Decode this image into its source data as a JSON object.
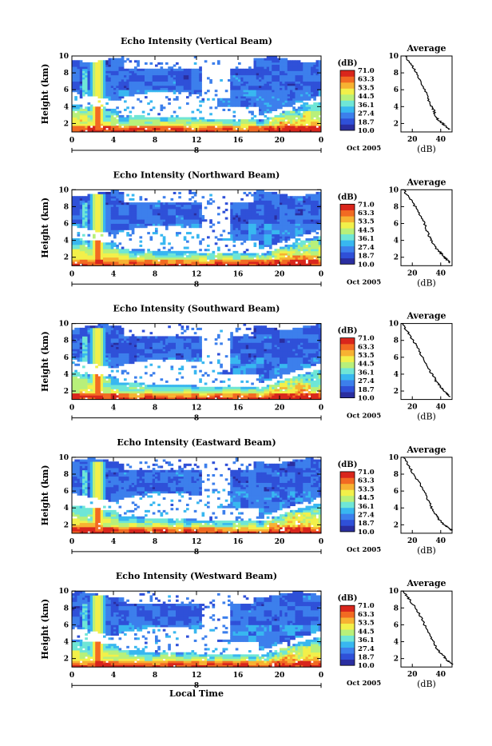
{
  "chart_data": {
    "type": "heatmap",
    "xlabel": "Local Time",
    "date_label": "Oct 2005",
    "date_marker": "8",
    "colorbar_unit": "(dB)",
    "colorbar_ticks": [
      "71.0",
      "63.3",
      "53.5",
      "44.5",
      "36.1",
      "27.4",
      "18.7",
      "10.0"
    ],
    "colorscale": [
      "#2a2ea0",
      "#2f50d8",
      "#3c7fec",
      "#38b7f0",
      "#6fe6d6",
      "#b8f07a",
      "#f2f04a",
      "#f7b232",
      "#f26a22",
      "#d9261c"
    ],
    "x_ticks": [
      "0",
      "4",
      "8",
      "12",
      "16",
      "20",
      "0"
    ],
    "y_ticks": [
      "2",
      "4",
      "6",
      "8",
      "10"
    ],
    "y_label": "Height (km)",
    "xlim": [
      0,
      24
    ],
    "ylim": [
      1,
      10
    ],
    "panels": [
      {
        "title": "Echo Intensity (Vertical Beam)",
        "avg_title": "Average",
        "avg_unit": "(dB)",
        "avg_x_ticks": [
          "20",
          "40"
        ],
        "avg_xlim": [
          12,
          48
        ],
        "avg_profile": [
          [
            46,
            1.3
          ],
          [
            44,
            1.6
          ],
          [
            42,
            1.9
          ],
          [
            40,
            2.2
          ],
          [
            38,
            2.5
          ],
          [
            36,
            3.0
          ],
          [
            35,
            3.6
          ],
          [
            33,
            4.2
          ],
          [
            31,
            5.0
          ],
          [
            29,
            6.0
          ],
          [
            26,
            7.0
          ],
          [
            23,
            8.0
          ],
          [
            20,
            8.8
          ],
          [
            17,
            9.4
          ],
          [
            15,
            10
          ]
        ]
      },
      {
        "title": "Echo Intensity (Northward Beam)",
        "avg_title": "Average",
        "avg_unit": "(dB)",
        "avg_x_ticks": [
          "20",
          "40"
        ],
        "avg_xlim": [
          12,
          48
        ],
        "avg_profile": [
          [
            47,
            1.3
          ],
          [
            45,
            1.6
          ],
          [
            43,
            1.9
          ],
          [
            41,
            2.3
          ],
          [
            39,
            2.7
          ],
          [
            36,
            3.2
          ],
          [
            34,
            3.8
          ],
          [
            32,
            4.5
          ],
          [
            30,
            5.3
          ],
          [
            28,
            6.2
          ],
          [
            25,
            7.1
          ],
          [
            22,
            8.0
          ],
          [
            19,
            8.8
          ],
          [
            16,
            9.4
          ],
          [
            14,
            10
          ]
        ]
      },
      {
        "title": "Echo Intensity (Southward Beam)",
        "avg_title": "Average",
        "avg_unit": "(dB)",
        "avg_x_ticks": [
          "20",
          "40"
        ],
        "avg_xlim": [
          12,
          48
        ],
        "avg_profile": [
          [
            47,
            1.3
          ],
          [
            45,
            1.6
          ],
          [
            43,
            1.9
          ],
          [
            41,
            2.3
          ],
          [
            39,
            2.7
          ],
          [
            37,
            3.1
          ],
          [
            35,
            3.7
          ],
          [
            32,
            4.4
          ],
          [
            30,
            5.2
          ],
          [
            27,
            6.1
          ],
          [
            24,
            7.0
          ],
          [
            21,
            7.9
          ],
          [
            18,
            8.7
          ],
          [
            15,
            9.4
          ],
          [
            13,
            10
          ]
        ]
      },
      {
        "title": "Echo Intensity (Eastward Beam)",
        "avg_title": "Average",
        "avg_unit": "(dB)",
        "avg_x_ticks": [
          "20",
          "40"
        ],
        "avg_xlim": [
          12,
          48
        ],
        "avg_profile": [
          [
            48,
            1.3
          ],
          [
            46,
            1.6
          ],
          [
            43,
            1.9
          ],
          [
            41,
            2.3
          ],
          [
            38,
            2.8
          ],
          [
            36,
            3.3
          ],
          [
            34,
            3.9
          ],
          [
            32,
            4.6
          ],
          [
            30,
            5.4
          ],
          [
            27,
            6.3
          ],
          [
            24,
            7.2
          ],
          [
            21,
            8.0
          ],
          [
            18,
            8.8
          ],
          [
            16,
            9.4
          ],
          [
            14,
            10
          ]
        ]
      },
      {
        "title": "Echo Intensity (Westward Beam)",
        "avg_title": "Average",
        "avg_unit": "(dB)",
        "avg_x_ticks": [
          "20",
          "40"
        ],
        "avg_xlim": [
          12,
          48
        ],
        "avg_profile": [
          [
            48,
            1.3
          ],
          [
            46,
            1.6
          ],
          [
            44,
            1.9
          ],
          [
            42,
            2.3
          ],
          [
            39,
            2.8
          ],
          [
            37,
            3.3
          ],
          [
            35,
            3.9
          ],
          [
            33,
            4.6
          ],
          [
            30,
            5.4
          ],
          [
            28,
            6.3
          ],
          [
            25,
            7.2
          ],
          [
            22,
            8.0
          ],
          [
            19,
            8.8
          ],
          [
            16,
            9.4
          ],
          [
            14,
            10
          ]
        ]
      }
    ]
  }
}
